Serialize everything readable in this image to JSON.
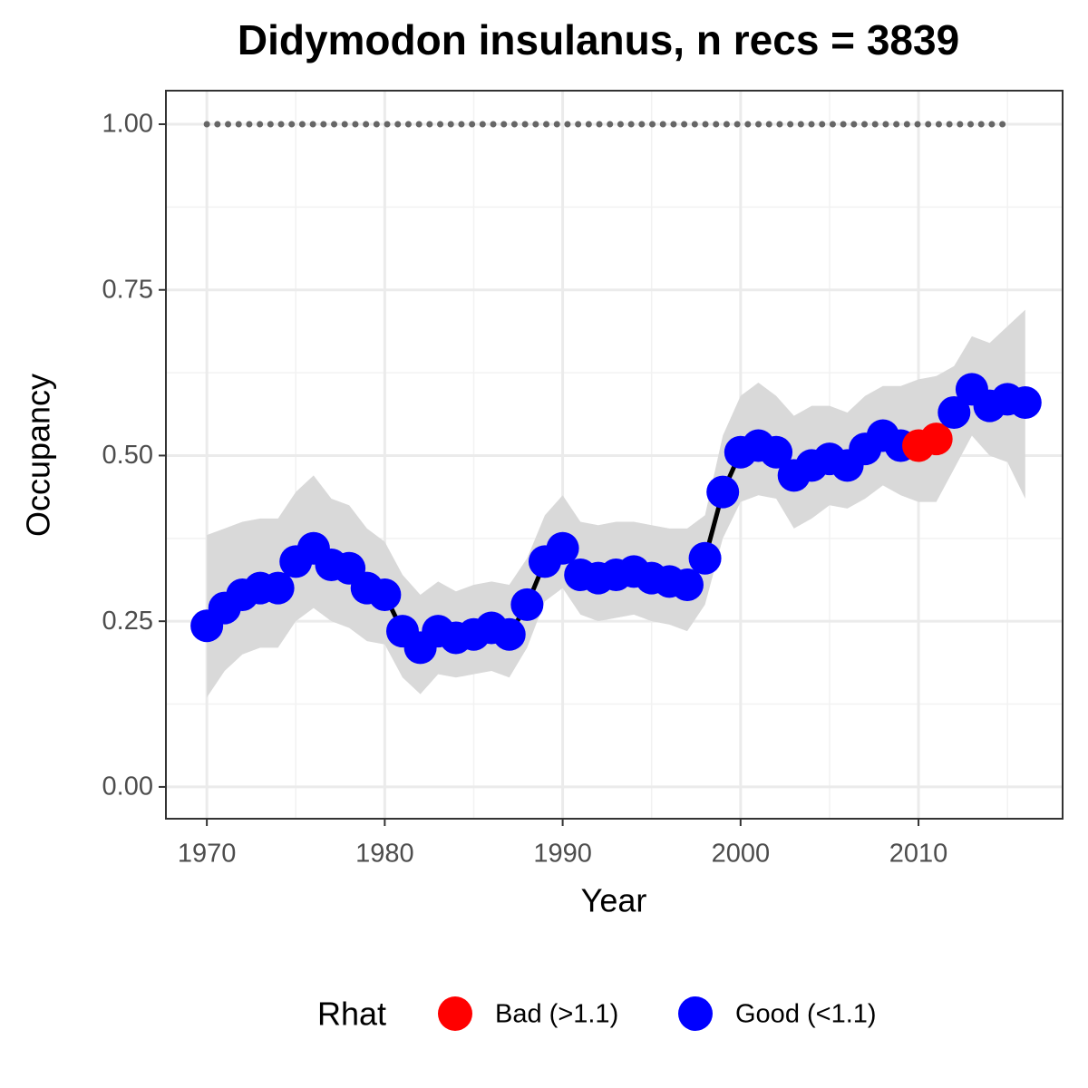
{
  "chart_data": {
    "type": "line",
    "title": "Didymodon insulanus, n recs = 3839",
    "x_label": "Year",
    "y_label": "Occupancy",
    "x": [
      1970,
      1971,
      1972,
      1973,
      1974,
      1975,
      1976,
      1977,
      1978,
      1979,
      1980,
      1981,
      1982,
      1983,
      1984,
      1985,
      1986,
      1987,
      1988,
      1989,
      1990,
      1991,
      1992,
      1993,
      1994,
      1995,
      1996,
      1997,
      1998,
      1999,
      2000,
      2001,
      2002,
      2003,
      2004,
      2005,
      2006,
      2007,
      2008,
      2009,
      2010,
      2011,
      2012,
      2013,
      2014,
      2015,
      2016
    ],
    "values": [
      0.243,
      0.27,
      0.29,
      0.3,
      0.3,
      0.34,
      0.36,
      0.335,
      0.33,
      0.3,
      0.29,
      0.235,
      0.21,
      0.235,
      0.225,
      0.23,
      0.24,
      0.23,
      0.275,
      0.34,
      0.36,
      0.32,
      0.315,
      0.32,
      0.325,
      0.315,
      0.31,
      0.305,
      0.345,
      0.445,
      0.505,
      0.515,
      0.505,
      0.47,
      0.485,
      0.495,
      0.485,
      0.51,
      0.53,
      0.515,
      0.515,
      0.525,
      0.565,
      0.6,
      0.575,
      0.585,
      0.58
    ],
    "upper": [
      0.38,
      0.39,
      0.4,
      0.405,
      0.405,
      0.445,
      0.47,
      0.435,
      0.425,
      0.39,
      0.37,
      0.32,
      0.29,
      0.31,
      0.295,
      0.305,
      0.31,
      0.305,
      0.345,
      0.41,
      0.44,
      0.4,
      0.395,
      0.4,
      0.4,
      0.395,
      0.39,
      0.39,
      0.41,
      0.53,
      0.59,
      0.61,
      0.59,
      0.56,
      0.575,
      0.575,
      0.565,
      0.59,
      0.605,
      0.605,
      0.615,
      0.62,
      0.635,
      0.68,
      0.67,
      0.695,
      0.72
    ],
    "lower": [
      0.135,
      0.175,
      0.2,
      0.21,
      0.21,
      0.25,
      0.27,
      0.25,
      0.24,
      0.22,
      0.215,
      0.165,
      0.14,
      0.17,
      0.165,
      0.17,
      0.175,
      0.165,
      0.21,
      0.28,
      0.3,
      0.26,
      0.25,
      0.255,
      0.26,
      0.25,
      0.245,
      0.235,
      0.275,
      0.375,
      0.43,
      0.44,
      0.435,
      0.39,
      0.405,
      0.425,
      0.42,
      0.435,
      0.455,
      0.44,
      0.43,
      0.43,
      0.48,
      0.53,
      0.5,
      0.49,
      0.435
    ],
    "rhat_group": [
      1,
      1,
      1,
      1,
      1,
      1,
      1,
      1,
      1,
      1,
      1,
      1,
      1,
      1,
      1,
      1,
      1,
      1,
      1,
      1,
      1,
      1,
      1,
      1,
      1,
      1,
      1,
      1,
      1,
      1,
      1,
      1,
      1,
      1,
      1,
      1,
      1,
      1,
      1,
      1,
      0,
      0,
      1,
      1,
      1,
      1,
      1
    ],
    "legend": {
      "title": "Rhat",
      "position": "bottom",
      "entries": [
        {
          "name": "Bad (>1.1)",
          "color": "#ff0000"
        },
        {
          "name": "Good (<1.1)",
          "color": "#0000ff"
        }
      ]
    },
    "line_color": "#000000",
    "ribbon_color": "#d9d9d9",
    "reference_line": {
      "value": 1,
      "from": 1970,
      "to": 2015,
      "color": "#666666"
    },
    "xlim": [
      1967.7,
      2018.1
    ],
    "ylim": [
      -0.048,
      1.0506
    ],
    "xticks": [
      1970,
      1980,
      1990,
      2000,
      2010
    ],
    "yticks": [
      {
        "value": 0,
        "label": "0.00"
      },
      {
        "value": 0.25,
        "label": "0.25"
      },
      {
        "value": 0.5,
        "label": "0.50"
      },
      {
        "value": 0.75,
        "label": "0.75"
      },
      {
        "value": 1,
        "label": "1.00"
      }
    ],
    "minor_xticks": [
      1975,
      1985,
      1995,
      2005,
      2015
    ],
    "minor_yticks": [
      0.125,
      0.375,
      0.625,
      0.875
    ],
    "grid": true
  }
}
